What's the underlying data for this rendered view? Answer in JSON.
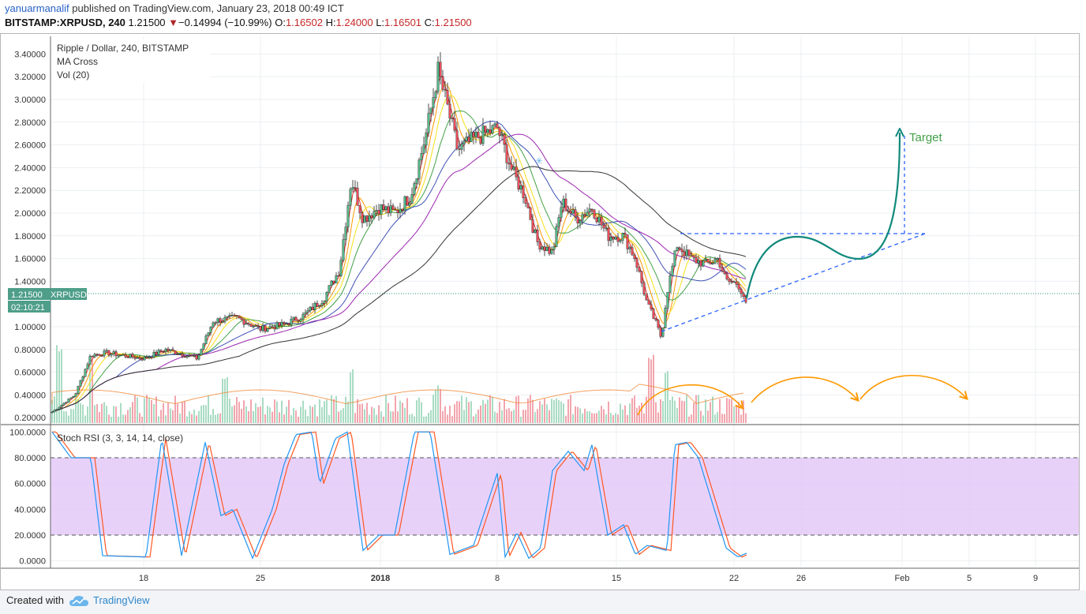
{
  "header": {
    "author": "yanuarmanalif",
    "published_text": "published on TradingView.com, January 23, 2018 00:49 ICT",
    "symbol": "BITSTAMP:XRPUSD, 240",
    "last_price": "1.21500",
    "change_arrow": "▼",
    "change": "−0.14994 (−10.99%)",
    "o_label": "O:",
    "o_value": "1.16502",
    "h_label": "H:",
    "h_value": "1.24000",
    "l_label": "L:",
    "l_value": "1.16501",
    "c_label": "C:",
    "c_value": "1.21500"
  },
  "legend": {
    "title": "Ripple / Dollar, 240, BITSTAMP",
    "indicator1": "MA Cross",
    "indicator2": "Vol (20)",
    "stoch_label": "Stoch RSI (3, 3, 14, 14, close)"
  },
  "price_tag": {
    "value": "1.21500",
    "symbol": "XRPUSD",
    "countdown": "02:10:21"
  },
  "annotation": {
    "target_label": "Target"
  },
  "footer": {
    "created_with": "Created with",
    "brand": "TradingView"
  },
  "colors": {
    "candle_up": "#53b987",
    "candle_down": "#eb4d5c",
    "vol_up": "#a9dcc3",
    "vol_down": "#f2a5ad",
    "ma_red": "#e53935",
    "ma_orange": "#ff9800",
    "ma_yellow": "#f5e11a",
    "ma_green": "#43a047",
    "ma_blue": "#3f51b5",
    "ma_purple": "#9c27b0",
    "ma_black": "#333333",
    "stoch_k": "#2196f3",
    "stoch_d": "#ff5722",
    "stoch_band": "#e2c6f7",
    "drawing_teal": "#10897b",
    "drawing_blue": "#2962ff",
    "drawing_orange": "#ff9800"
  },
  "chart_data": [
    {
      "type": "candlestick",
      "title": "Ripple / Dollar, 240, BITSTAMP",
      "x_ticks": [
        "18",
        "25",
        "2018",
        "8",
        "15",
        "22",
        "26",
        "Feb",
        "5",
        "9"
      ],
      "y_ticks": [
        "3.40000",
        "3.20000",
        "3.00000",
        "2.80000",
        "2.60000",
        "2.40000",
        "2.20000",
        "2.00000",
        "1.80000",
        "1.60000",
        "1.40000",
        "1.00000",
        "0.80000",
        "0.60000",
        "0.40000",
        "0.20000"
      ],
      "ylim": [
        0.13,
        3.47
      ],
      "ohlc_last": {
        "open": 1.16502,
        "high": 1.24,
        "low": 1.16501,
        "close": 1.215
      },
      "approx_close_path": [
        [
          "Dec 13",
          0.25
        ],
        [
          "Dec 15",
          0.75
        ],
        [
          "Dec 18",
          0.72
        ],
        [
          "Dec 21",
          0.92
        ],
        [
          "Dec 23",
          1.05
        ],
        [
          "Dec 27",
          1.05
        ],
        [
          "Dec 29",
          1.4
        ],
        [
          "Dec 30",
          2.3
        ],
        [
          "Jan 1",
          1.95
        ],
        [
          "Jan 3",
          2.8
        ],
        [
          "Jan 4",
          3.3
        ],
        [
          "Jan 5",
          2.6
        ],
        [
          "Jan 7",
          2.7
        ],
        [
          "Jan 9",
          2.1
        ],
        [
          "Jan 11",
          1.7
        ],
        [
          "Jan 12",
          2.1
        ],
        [
          "Jan 14",
          1.85
        ],
        [
          "Jan 16",
          1.4
        ],
        [
          "Jan 17",
          0.9
        ],
        [
          "Jan 18",
          1.7
        ],
        [
          "Jan 20",
          1.55
        ],
        [
          "Jan 22",
          1.215
        ]
      ],
      "moving_averages": [
        "red",
        "orange",
        "yellow",
        "green",
        "blue",
        "purple",
        "black"
      ],
      "volume": "Vol (20)",
      "drawings": {
        "support_trendline": {
          "from": [
            "Jan 17",
            0.88
          ],
          "to": [
            "Feb 2",
            1.74
          ]
        },
        "resistance_level": 1.74,
        "projected_path": [
          [
            "Jan 22",
            1.215
          ],
          [
            "Jan 24",
            1.7
          ],
          [
            "Jan 29",
            1.52
          ],
          [
            "Feb 1",
            2.6
          ]
        ],
        "target_label": "Target"
      }
    },
    {
      "type": "line",
      "title": "Stoch RSI (3, 3, 14, 14, close)",
      "y_ticks": [
        "100.0000",
        "80.0000",
        "60.0000",
        "40.0000",
        "20.0000",
        "0.0000"
      ],
      "ylim": [
        -4,
        102
      ],
      "bands": [
        20,
        80
      ],
      "series": [
        {
          "name": "%K"
        },
        {
          "name": "%D"
        }
      ]
    }
  ]
}
